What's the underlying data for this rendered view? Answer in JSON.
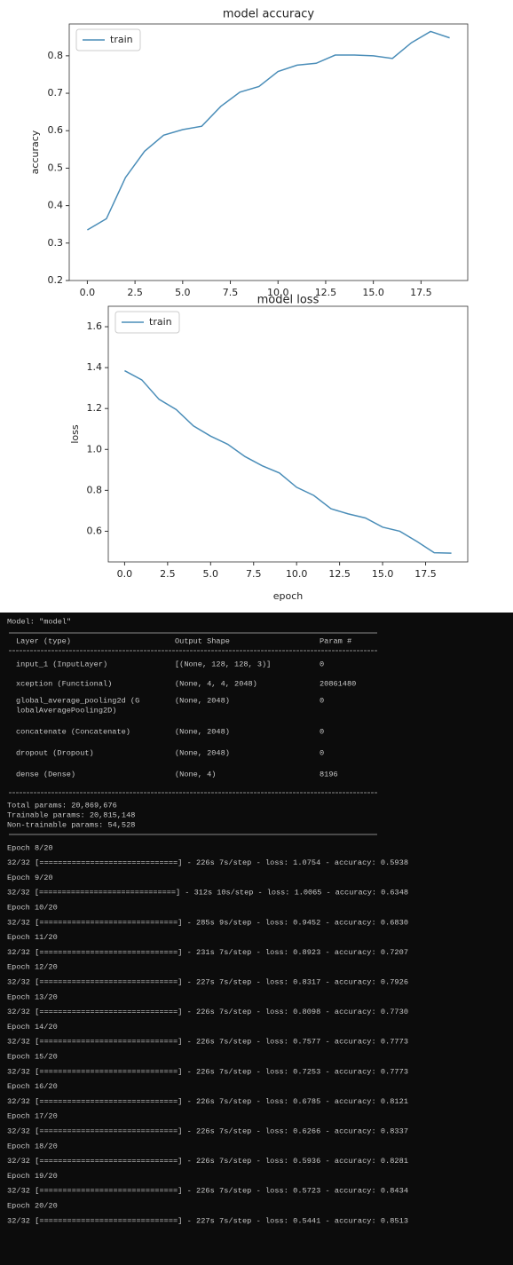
{
  "chart_data": [
    {
      "type": "line",
      "title": "model accuracy",
      "ylabel": "accuracy",
      "x": [
        0,
        1,
        2,
        3,
        4,
        5,
        6,
        7,
        8,
        9,
        10,
        11,
        12,
        13,
        14,
        15,
        16,
        17,
        18,
        19
      ],
      "series": [
        {
          "name": "train",
          "color": "#4a8db8",
          "values": [
            0.335,
            0.365,
            0.475,
            0.545,
            0.588,
            0.603,
            0.612,
            0.665,
            0.703,
            0.718,
            0.758,
            0.775,
            0.78,
            0.802,
            0.802,
            0.8,
            0.793,
            0.835,
            0.865,
            0.848
          ]
        }
      ],
      "xlim": [
        -0.95,
        19.95
      ],
      "ylim": [
        0.2,
        0.885
      ],
      "xticks": [
        {
          "value": 0,
          "label": "0.0"
        },
        2.5,
        {
          "value": 5,
          "label": "5.0"
        },
        7.5,
        {
          "value": 10,
          "label": "10.0"
        },
        12.5,
        {
          "value": 15,
          "label": "15.0"
        },
        17.5
      ],
      "yticks": [
        0.2,
        0.3,
        0.4,
        0.5,
        0.6,
        0.7,
        0.8
      ],
      "legend": "upper left",
      "grid": false
    },
    {
      "type": "line",
      "title": "model loss",
      "ylabel": "loss",
      "xlabel": "epoch",
      "x": [
        0,
        1,
        2,
        3,
        4,
        5,
        6,
        7,
        8,
        9,
        10,
        11,
        12,
        13,
        14,
        15,
        16,
        17,
        18,
        19
      ],
      "series": [
        {
          "name": "train",
          "color": "#4a8db8",
          "values": [
            1.385,
            1.34,
            1.245,
            1.195,
            1.115,
            1.065,
            1.025,
            0.965,
            0.92,
            0.885,
            0.815,
            0.775,
            0.71,
            0.685,
            0.665,
            0.62,
            0.6,
            0.55,
            0.495,
            0.493
          ]
        }
      ],
      "xlim": [
        -0.95,
        19.95
      ],
      "ylim": [
        0.45,
        1.7
      ],
      "xticks": [
        {
          "value": 0,
          "label": "0.0"
        },
        2.5,
        {
          "value": 5,
          "label": "5.0"
        },
        7.5,
        {
          "value": 10,
          "label": "10.0"
        },
        12.5,
        {
          "value": 15,
          "label": "15.0"
        },
        17.5
      ],
      "yticks": [
        0.6,
        0.8,
        {
          "value": 1,
          "label": "1.0"
        },
        1.2,
        1.4,
        1.6
      ],
      "legend": "upper left",
      "grid": false
    }
  ],
  "console": {
    "model_title": "Model: \"model\"",
    "columns": [
      "Layer (type)",
      "Output Shape",
      "Param #"
    ],
    "rows": [
      [
        "input_1 (InputLayer)",
        "[(None, 128, 128, 3)]",
        "0"
      ],
      [
        "xception (Functional)",
        "(None, 4, 4, 2048)",
        "20861480"
      ],
      [
        [
          "global_average_pooling2d (G",
          "lobalAveragePooling2D)"
        ],
        "(None, 2048)",
        "0"
      ],
      [
        "concatenate (Concatenate)",
        "(None, 2048)",
        "0"
      ],
      [
        "dropout (Dropout)",
        "(None, 2048)",
        "0"
      ],
      [
        "dense (Dense)",
        "(None, 4)",
        "8196"
      ]
    ],
    "totals": [
      "Total params: 20,869,676",
      "Trainable params: 20,815,148",
      "Non-trainable params: 54,528"
    ],
    "epochs": [
      [
        "Epoch 8/20",
        "32/32 [==============================] - 226s 7s/step - loss: 1.0754 - accuracy: 0.5938"
      ],
      [
        "Epoch 9/20",
        "32/32 [==============================] - 312s 10s/step - loss: 1.0065 - accuracy: 0.6348"
      ],
      [
        "Epoch 10/20",
        "32/32 [==============================] - 285s 9s/step - loss: 0.9452 - accuracy: 0.6830"
      ],
      [
        "Epoch 11/20",
        "32/32 [==============================] - 231s 7s/step - loss: 0.8923 - accuracy: 0.7207"
      ],
      [
        "Epoch 12/20",
        "32/32 [==============================] - 227s 7s/step - loss: 0.8317 - accuracy: 0.7926"
      ],
      [
        "Epoch 13/20",
        "32/32 [==============================] - 226s 7s/step - loss: 0.8098 - accuracy: 0.7730"
      ],
      [
        "Epoch 14/20",
        "32/32 [==============================] - 226s 7s/step - loss: 0.7577 - accuracy: 0.7773"
      ],
      [
        "Epoch 15/20",
        "32/32 [==============================] - 226s 7s/step - loss: 0.7253 - accuracy: 0.7773"
      ],
      [
        "Epoch 16/20",
        "32/32 [==============================] - 226s 7s/step - loss: 0.6785 - accuracy: 0.8121"
      ],
      [
        "Epoch 17/20",
        "32/32 [==============================] - 226s 7s/step - loss: 0.6266 - accuracy: 0.8337"
      ],
      [
        "Epoch 18/20",
        "32/32 [==============================] - 226s 7s/step - loss: 0.5936 - accuracy: 0.8281"
      ],
      [
        "Epoch 19/20",
        "32/32 [==============================] - 226s 7s/step - loss: 0.5723 - accuracy: 0.8434"
      ],
      [
        "Epoch 20/20",
        "32/32 [==============================] - 227s 7s/step - loss: 0.5441 - accuracy: 0.8513"
      ]
    ]
  }
}
